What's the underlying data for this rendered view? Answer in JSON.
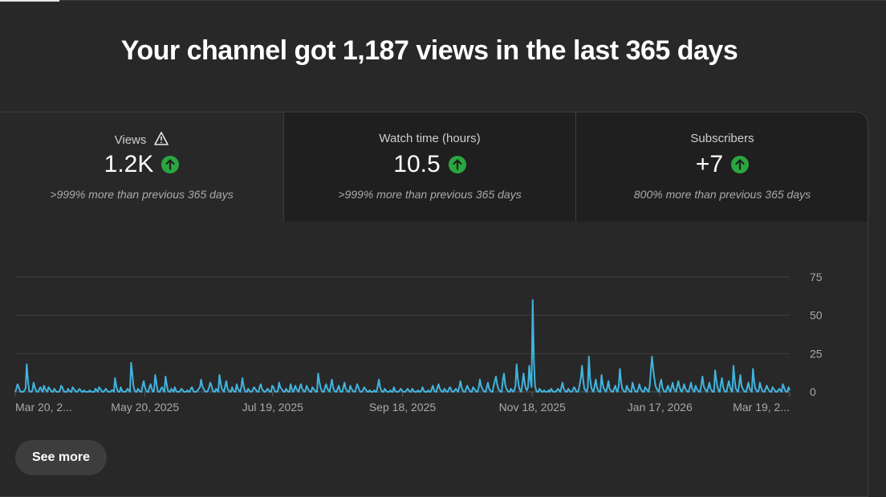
{
  "headline": "Your channel got 1,187 views in the last 365 days",
  "metrics": [
    {
      "label": "Views",
      "value": "1.2K",
      "sub": ">999% more than previous 365 days",
      "warning": true,
      "trend": "up"
    },
    {
      "label": "Watch time (hours)",
      "value": "10.5",
      "sub": ">999% more than previous 365 days",
      "warning": false,
      "trend": "up"
    },
    {
      "label": "Subscribers",
      "value": "+7",
      "sub": "800% more than previous 365 days",
      "warning": false,
      "trend": "up"
    }
  ],
  "colors": {
    "accent": "#3ea6ff",
    "line": "#41b4de",
    "trend_up": "#2ba640"
  },
  "see_more_label": "See more",
  "chart_data": {
    "type": "line",
    "x_tick_labels": [
      "Mar 20, 2...",
      "May 20, 2025",
      "Jul 19, 2025",
      "Sep 18, 2025",
      "Nov 18, 2025",
      "Jan 17, 2026",
      "Mar 19, 2..."
    ],
    "x_tick_positions": [
      0,
      61,
      121,
      182,
      243,
      303,
      364
    ],
    "y_ticks": [
      0,
      25,
      50,
      75
    ],
    "ylim": [
      0,
      75
    ],
    "grid": true,
    "series": [
      {
        "values": [
          0,
          2,
          5,
          3,
          1,
          0,
          0,
          0,
          1,
          2,
          18,
          8,
          1,
          0,
          0,
          1,
          6,
          3,
          1,
          0,
          0,
          2,
          3,
          1,
          0,
          4,
          2,
          1,
          0,
          3,
          2,
          1,
          0,
          0,
          2,
          1,
          0,
          0,
          0,
          1,
          4,
          3,
          1,
          0,
          0,
          0,
          2,
          1,
          0,
          0,
          3,
          2,
          1,
          0,
          0,
          1,
          2,
          1,
          0,
          0,
          1,
          0,
          0,
          0,
          0,
          1,
          0,
          0,
          0,
          0,
          2,
          1,
          0,
          3,
          2,
          1,
          0,
          0,
          1,
          2,
          1,
          0,
          0,
          0,
          1,
          1,
          0,
          9,
          4,
          1,
          0,
          0,
          3,
          1,
          0,
          0,
          0,
          1,
          2,
          1,
          0,
          19,
          12,
          4,
          1,
          0,
          0,
          2,
          1,
          0,
          0,
          4,
          7,
          3,
          1,
          0,
          0,
          3,
          5,
          2,
          0,
          1,
          11,
          6,
          1,
          0,
          0,
          2,
          3,
          1,
          0,
          10,
          5,
          1,
          0,
          0,
          2,
          1,
          0,
          3,
          1,
          0,
          0,
          0,
          1,
          2,
          1,
          0,
          0,
          0,
          1,
          0,
          0,
          2,
          3,
          1,
          0,
          0,
          0,
          1,
          2,
          3,
          8,
          4,
          2,
          1,
          0,
          0,
          1,
          3,
          6,
          4,
          1,
          0,
          0,
          2,
          1,
          0,
          11,
          6,
          2,
          1,
          0,
          4,
          7,
          2,
          1,
          0,
          0,
          3,
          1,
          0,
          0,
          5,
          2,
          1,
          0,
          3,
          9,
          4,
          1,
          0,
          0,
          2,
          1,
          0,
          0,
          1,
          3,
          2,
          1,
          0,
          0,
          3,
          5,
          2,
          1,
          0,
          0,
          1,
          2,
          1,
          0,
          0,
          4,
          3,
          1,
          0,
          0,
          1,
          6,
          3,
          2,
          1,
          0,
          0,
          2,
          1,
          0,
          0,
          5,
          2,
          0,
          1,
          4,
          2,
          1,
          0,
          3,
          5,
          2,
          1,
          0,
          1,
          4,
          2,
          1,
          0,
          0,
          3,
          2,
          1,
          0,
          0,
          12,
          7,
          3,
          1,
          0,
          0,
          3,
          5,
          2,
          1,
          0,
          4,
          8,
          3,
          1,
          0,
          0,
          2,
          4,
          1,
          0,
          0,
          3,
          6,
          2,
          1,
          0,
          0,
          4,
          2,
          1,
          0,
          0,
          2,
          5,
          3,
          1,
          0,
          0,
          1,
          3,
          2,
          1,
          0,
          0,
          1,
          0,
          0,
          0,
          1,
          0,
          0,
          4,
          8,
          3,
          1,
          0,
          0,
          2,
          1,
          0,
          0,
          0,
          1,
          0,
          0,
          3,
          1,
          0,
          0,
          0,
          1,
          2,
          1,
          0,
          0,
          0,
          1,
          2,
          1,
          0,
          0,
          2,
          1,
          0,
          0,
          0,
          1,
          0,
          0,
          1,
          3,
          1,
          0,
          0,
          0,
          1,
          0,
          0,
          2,
          4,
          1,
          0,
          0,
          3,
          5,
          2,
          1,
          0,
          0,
          2,
          1,
          0,
          0,
          2,
          3,
          1,
          0,
          0,
          1,
          2,
          1,
          0,
          3,
          7,
          3,
          1,
          0,
          0,
          2,
          4,
          2,
          1,
          0,
          0,
          3,
          2,
          1,
          0,
          0,
          3,
          8,
          4,
          2,
          1,
          0,
          0,
          3,
          6,
          2,
          1,
          0,
          0,
          4,
          7,
          10,
          5,
          2,
          1,
          0,
          0,
          8,
          12,
          5,
          2,
          1,
          0,
          0,
          2,
          1,
          0,
          1,
          4,
          18,
          9,
          3,
          1,
          0,
          5,
          12,
          6,
          2,
          1,
          3,
          17,
          8,
          3,
          60,
          22,
          4,
          1,
          0,
          0,
          2,
          1,
          0,
          0,
          1,
          0,
          0,
          0,
          1,
          0,
          2,
          1,
          0,
          0,
          0,
          1,
          2,
          1,
          0,
          3,
          6,
          2,
          1,
          0,
          0,
          2,
          1,
          0,
          0,
          1,
          3,
          2,
          0,
          0,
          1,
          5,
          9,
          17,
          8,
          2,
          1,
          0,
          3,
          23,
          9,
          3,
          1,
          0,
          4,
          8,
          3,
          1,
          0,
          0,
          11,
          5,
          2,
          1,
          0,
          3,
          7,
          2,
          1,
          0,
          0,
          2,
          4,
          1,
          0,
          4,
          15,
          7,
          2,
          1,
          0,
          0,
          4,
          2,
          1,
          0,
          0,
          6,
          3,
          1,
          0,
          0,
          2,
          5,
          2,
          1,
          0,
          0,
          3,
          2,
          1,
          0,
          4,
          14,
          23,
          15,
          9,
          4,
          2,
          1,
          0,
          5,
          8,
          3,
          1,
          0,
          0,
          2,
          4,
          1,
          0,
          3,
          6,
          2,
          1,
          0,
          4,
          7,
          3,
          1,
          0,
          2,
          5,
          2,
          1,
          0,
          0,
          3,
          6,
          2,
          1,
          0,
          4,
          2,
          1,
          0,
          0,
          5,
          10,
          4,
          2,
          1,
          0,
          3,
          6,
          2,
          1,
          0,
          0,
          14,
          8,
          3,
          1,
          0,
          5,
          9,
          3,
          1,
          0,
          0,
          4,
          7,
          3,
          1,
          0,
          17,
          8,
          2,
          1,
          0,
          5,
          11,
          4,
          2,
          1,
          0,
          0,
          3,
          6,
          2,
          1,
          0,
          15,
          7,
          2,
          1,
          0,
          1,
          6,
          3,
          1,
          0,
          0,
          2,
          4,
          2,
          1,
          0,
          0,
          3,
          2,
          1,
          0,
          0,
          1,
          2,
          1,
          0,
          5,
          3,
          1,
          0,
          0,
          3,
          1
        ]
      }
    ]
  }
}
